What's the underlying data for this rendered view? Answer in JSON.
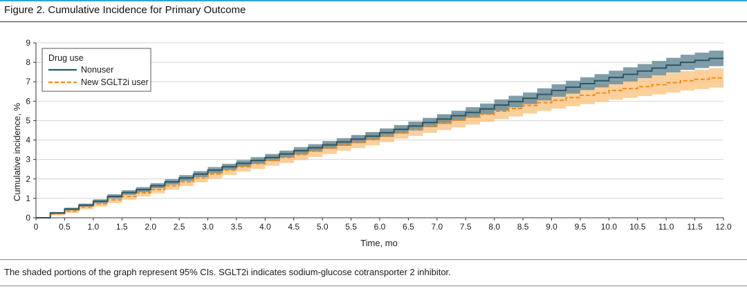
{
  "figure": {
    "title": "Figure 2. Cumulative Incidence for Primary Outcome",
    "caption": "The shaded portions of the graph represent 95% CIs. SGLT2i indicates sodium-glucose cotransporter 2 inhibitor."
  },
  "colors": {
    "accent_rule": "#2aa9c9",
    "nonuser_line": "#2f5563",
    "nonuser_ci": "#6a8d9a",
    "sglt2_line": "#f28c1f",
    "sglt2_ci": "#f9c07a",
    "grid": "#d4d4d4"
  },
  "chart_data": {
    "type": "line",
    "step": true,
    "xlabel": "Time, mo",
    "ylabel": "Cumulative incidence, %",
    "xlim": [
      0,
      12
    ],
    "ylim": [
      0,
      9
    ],
    "xticks": [
      "0",
      "0.5",
      "1.0",
      "1.5",
      "2.0",
      "2.5",
      "3.0",
      "3.5",
      "4.0",
      "4.5",
      "5.0",
      "5.5",
      "6.0",
      "6.5",
      "7.0",
      "7.5",
      "8.0",
      "8.5",
      "9.0",
      "9.5",
      "10.0",
      "10.5",
      "11.0",
      "11.5",
      "12.0"
    ],
    "yticks": [
      "0",
      "1",
      "2",
      "3",
      "4",
      "5",
      "6",
      "7",
      "8",
      "9"
    ],
    "grid": "horizontal",
    "legend": {
      "title": "Drug use",
      "position": "top-left"
    },
    "x": [
      0,
      0.25,
      0.5,
      0.75,
      1.0,
      1.25,
      1.5,
      1.75,
      2.0,
      2.25,
      2.5,
      2.75,
      3.0,
      3.25,
      3.5,
      3.75,
      4.0,
      4.25,
      4.5,
      4.75,
      5.0,
      5.25,
      5.5,
      5.75,
      6.0,
      6.25,
      6.5,
      6.75,
      7.0,
      7.25,
      7.5,
      7.75,
      8.0,
      8.25,
      8.5,
      8.75,
      9.0,
      9.25,
      9.5,
      9.75,
      10.0,
      10.25,
      10.5,
      10.75,
      11.0,
      11.25,
      11.5,
      11.75,
      12.0
    ],
    "series": [
      {
        "name": "Nonuser",
        "style": "solid",
        "values": [
          0,
          0.25,
          0.45,
          0.65,
          0.85,
          1.1,
          1.3,
          1.45,
          1.65,
          1.85,
          2.05,
          2.25,
          2.45,
          2.62,
          2.8,
          2.95,
          3.1,
          3.28,
          3.45,
          3.6,
          3.75,
          3.9,
          4.05,
          4.2,
          4.38,
          4.55,
          4.72,
          4.9,
          5.08,
          5.25,
          5.42,
          5.6,
          5.8,
          5.98,
          6.15,
          6.35,
          6.55,
          6.72,
          6.9,
          7.05,
          7.22,
          7.38,
          7.55,
          7.7,
          7.85,
          8.0,
          8.1,
          8.2,
          8.2
        ],
        "ci_half_width": [
          0,
          0.05,
          0.07,
          0.08,
          0.1,
          0.11,
          0.12,
          0.13,
          0.13,
          0.14,
          0.15,
          0.15,
          0.16,
          0.16,
          0.17,
          0.17,
          0.18,
          0.18,
          0.19,
          0.19,
          0.2,
          0.2,
          0.21,
          0.21,
          0.22,
          0.22,
          0.23,
          0.24,
          0.25,
          0.26,
          0.27,
          0.28,
          0.29,
          0.3,
          0.3,
          0.31,
          0.32,
          0.33,
          0.33,
          0.34,
          0.35,
          0.36,
          0.36,
          0.37,
          0.38,
          0.39,
          0.4,
          0.4,
          0.4
        ]
      },
      {
        "name": "New SGLT2i user",
        "style": "dashed",
        "values": [
          0,
          0.2,
          0.35,
          0.55,
          0.72,
          0.92,
          1.1,
          1.28,
          1.45,
          1.65,
          1.85,
          2.05,
          2.25,
          2.45,
          2.62,
          2.78,
          2.95,
          3.1,
          3.25,
          3.42,
          3.58,
          3.75,
          3.9,
          4.05,
          4.22,
          4.4,
          4.55,
          4.72,
          4.88,
          5.02,
          5.18,
          5.32,
          5.48,
          5.62,
          5.78,
          5.92,
          6.05,
          6.18,
          6.3,
          6.42,
          6.55,
          6.65,
          6.75,
          6.85,
          6.95,
          7.05,
          7.12,
          7.2,
          7.2
        ],
        "ci_half_width": [
          0,
          0.07,
          0.1,
          0.12,
          0.14,
          0.16,
          0.17,
          0.18,
          0.19,
          0.2,
          0.21,
          0.22,
          0.23,
          0.24,
          0.25,
          0.26,
          0.27,
          0.28,
          0.28,
          0.29,
          0.3,
          0.3,
          0.31,
          0.32,
          0.33,
          0.33,
          0.34,
          0.35,
          0.36,
          0.37,
          0.38,
          0.39,
          0.4,
          0.41,
          0.42,
          0.42,
          0.43,
          0.44,
          0.45,
          0.46,
          0.47,
          0.48,
          0.49,
          0.5,
          0.5,
          0.5,
          0.5,
          0.5,
          0.5
        ]
      }
    ]
  }
}
